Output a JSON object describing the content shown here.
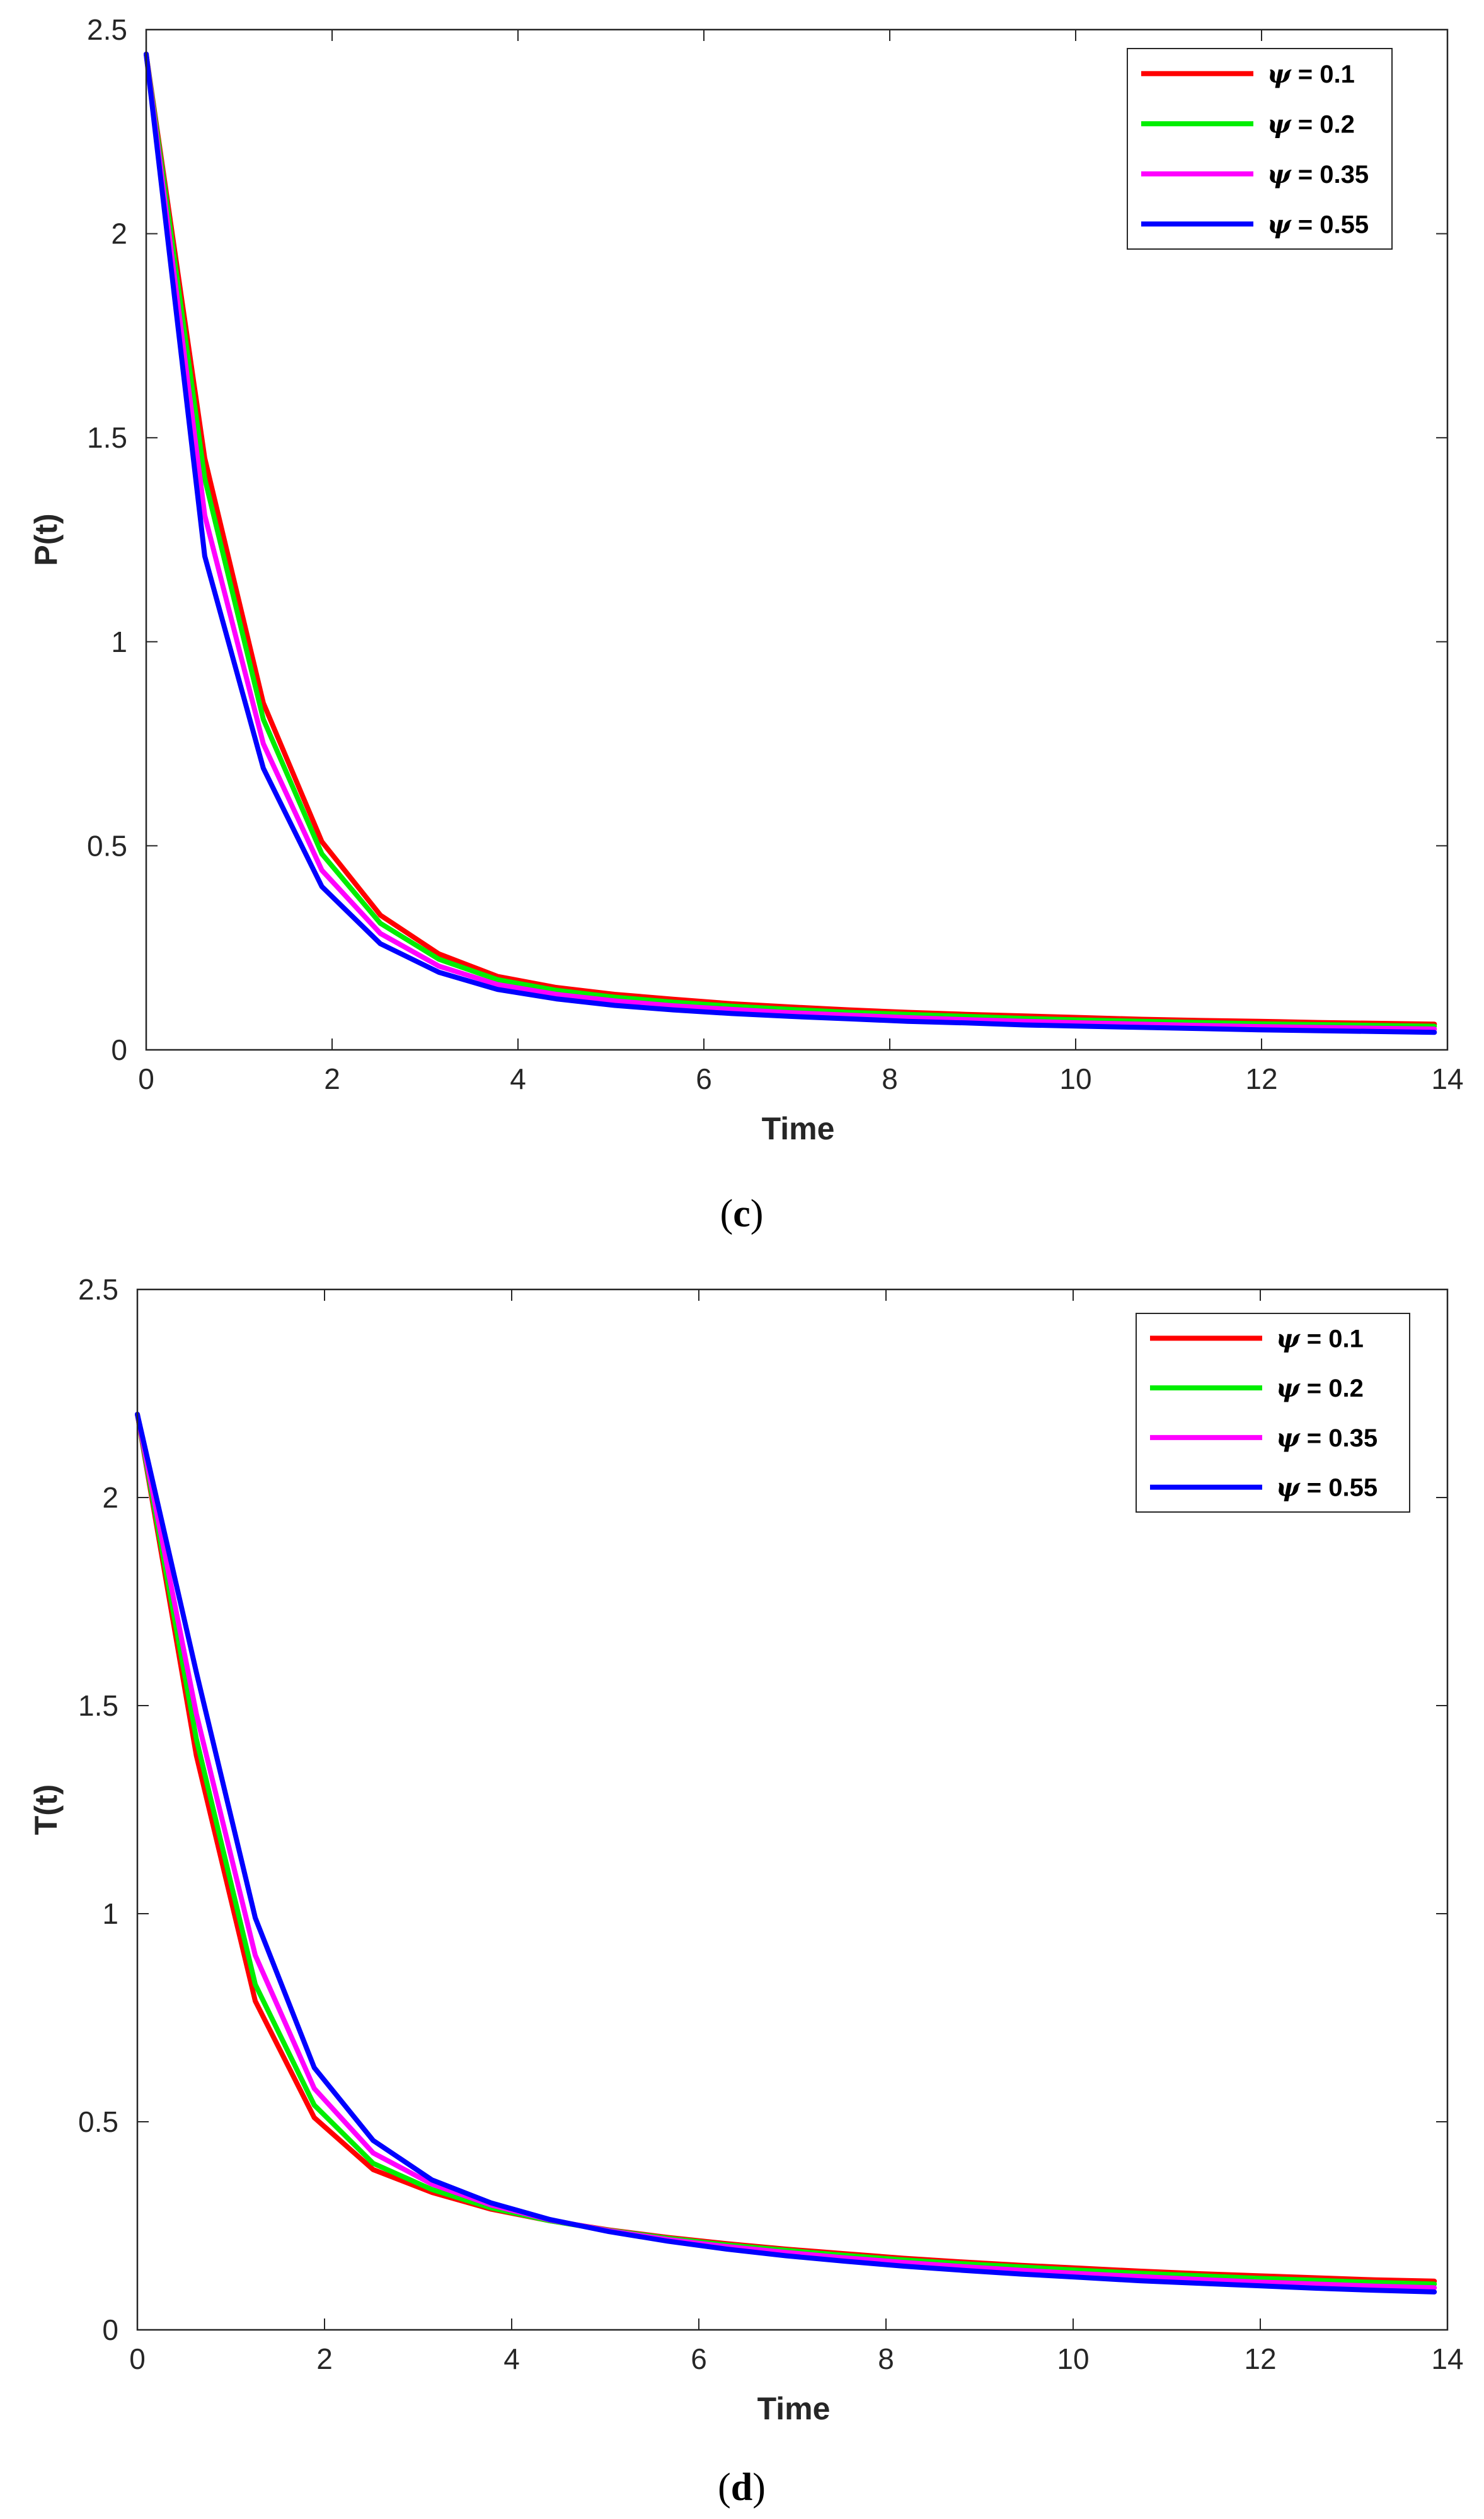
{
  "chart_data": [
    {
      "type": "line",
      "panel": "c",
      "caption": {
        "open": "(",
        "letter": "c",
        "close": ")"
      },
      "xlabel": "Time",
      "ylabel": "P(t)",
      "xlim": [
        0,
        14
      ],
      "ylim": [
        0,
        2.5
      ],
      "xticks": [
        0,
        2,
        4,
        6,
        8,
        10,
        12,
        14
      ],
      "xtick_labels": [
        "0",
        "2",
        "4",
        "6",
        "8",
        "10",
        "12",
        "14"
      ],
      "yticks": [
        0,
        0.5,
        1,
        1.5,
        2,
        2.5
      ],
      "ytick_labels": [
        "0",
        "0.5",
        "1",
        "1.5",
        "2",
        "2.5"
      ],
      "legend_position": "top-right",
      "x": [
        0,
        0.63,
        1.26,
        1.89,
        2.52,
        3.15,
        3.78,
        4.41,
        5.04,
        5.67,
        6.3,
        6.93,
        7.56,
        8.19,
        8.82,
        9.45,
        10.08,
        10.71,
        11.34,
        11.97,
        12.6,
        13.23,
        13.86
      ],
      "series": [
        {
          "name": "0.1",
          "color": "#ff0000",
          "values": [
            2.44,
            1.45,
            0.85,
            0.51,
            0.33,
            0.235,
            0.18,
            0.153,
            0.136,
            0.124,
            0.113,
            0.105,
            0.098,
            0.092,
            0.087,
            0.083,
            0.079,
            0.075,
            0.072,
            0.07,
            0.067,
            0.065,
            0.063
          ]
        },
        {
          "name": "0.2",
          "color": "#00ee00",
          "values": [
            2.44,
            1.4,
            0.81,
            0.48,
            0.31,
            0.222,
            0.172,
            0.146,
            0.129,
            0.117,
            0.107,
            0.099,
            0.092,
            0.087,
            0.082,
            0.077,
            0.073,
            0.07,
            0.067,
            0.064,
            0.062,
            0.06,
            0.058
          ]
        },
        {
          "name": "0.35",
          "color": "#ff00ff",
          "values": [
            2.44,
            1.31,
            0.75,
            0.44,
            0.285,
            0.205,
            0.16,
            0.136,
            0.12,
            0.108,
            0.099,
            0.091,
            0.085,
            0.079,
            0.074,
            0.07,
            0.066,
            0.063,
            0.06,
            0.057,
            0.055,
            0.053,
            0.051
          ]
        },
        {
          "name": "0.55",
          "color": "#0000ff",
          "values": [
            2.44,
            1.21,
            0.69,
            0.4,
            0.26,
            0.19,
            0.148,
            0.125,
            0.109,
            0.098,
            0.089,
            0.082,
            0.076,
            0.07,
            0.066,
            0.061,
            0.058,
            0.055,
            0.052,
            0.049,
            0.047,
            0.045,
            0.043
          ]
        }
      ]
    },
    {
      "type": "line",
      "panel": "d",
      "caption": {
        "open": "(",
        "letter": "d",
        "close": ")"
      },
      "xlabel": "Time",
      "ylabel": "T(t)",
      "xlim": [
        0,
        14
      ],
      "ylim": [
        0,
        2.5
      ],
      "xticks": [
        0,
        2,
        4,
        6,
        8,
        10,
        12,
        14
      ],
      "xtick_labels": [
        "0",
        "2",
        "4",
        "6",
        "8",
        "10",
        "12",
        "14"
      ],
      "yticks": [
        0,
        0.5,
        1,
        1.5,
        2,
        2.5
      ],
      "ytick_labels": [
        "0",
        "0.5",
        "1",
        "1.5",
        "2",
        "2.5"
      ],
      "legend_position": "top-right",
      "x": [
        0,
        0.63,
        1.26,
        1.89,
        2.52,
        3.15,
        3.78,
        4.41,
        5.04,
        5.67,
        6.3,
        6.93,
        7.56,
        8.19,
        8.82,
        9.45,
        10.08,
        10.71,
        11.34,
        11.97,
        12.6,
        13.23,
        13.86
      ],
      "series": [
        {
          "name": "0.1",
          "color": "#ff0000",
          "values": [
            2.2,
            1.38,
            0.79,
            0.51,
            0.385,
            0.33,
            0.29,
            0.262,
            0.24,
            0.222,
            0.207,
            0.194,
            0.183,
            0.172,
            0.163,
            0.155,
            0.148,
            0.141,
            0.135,
            0.13,
            0.125,
            0.12,
            0.117
          ]
        },
        {
          "name": "0.2",
          "color": "#00ee00",
          "values": [
            2.2,
            1.42,
            0.83,
            0.54,
            0.4,
            0.337,
            0.293,
            0.262,
            0.239,
            0.22,
            0.204,
            0.191,
            0.179,
            0.168,
            0.159,
            0.151,
            0.143,
            0.136,
            0.13,
            0.124,
            0.119,
            0.114,
            0.11
          ]
        },
        {
          "name": "0.35",
          "color": "#ff00ff",
          "values": [
            2.2,
            1.48,
            0.9,
            0.58,
            0.425,
            0.35,
            0.3,
            0.264,
            0.238,
            0.217,
            0.2,
            0.186,
            0.173,
            0.162,
            0.152,
            0.143,
            0.135,
            0.128,
            0.121,
            0.115,
            0.11,
            0.105,
            0.101
          ]
        },
        {
          "name": "0.55",
          "color": "#0000ff",
          "values": [
            2.2,
            1.58,
            0.99,
            0.63,
            0.455,
            0.36,
            0.305,
            0.265,
            0.236,
            0.213,
            0.194,
            0.178,
            0.165,
            0.153,
            0.143,
            0.134,
            0.126,
            0.118,
            0.112,
            0.106,
            0.1,
            0.095,
            0.091
          ]
        }
      ]
    }
  ],
  "legend": {
    "symbol": "ψ",
    "separator": " = "
  },
  "colors": {
    "axis": "#262626",
    "background": "#ffffff"
  }
}
